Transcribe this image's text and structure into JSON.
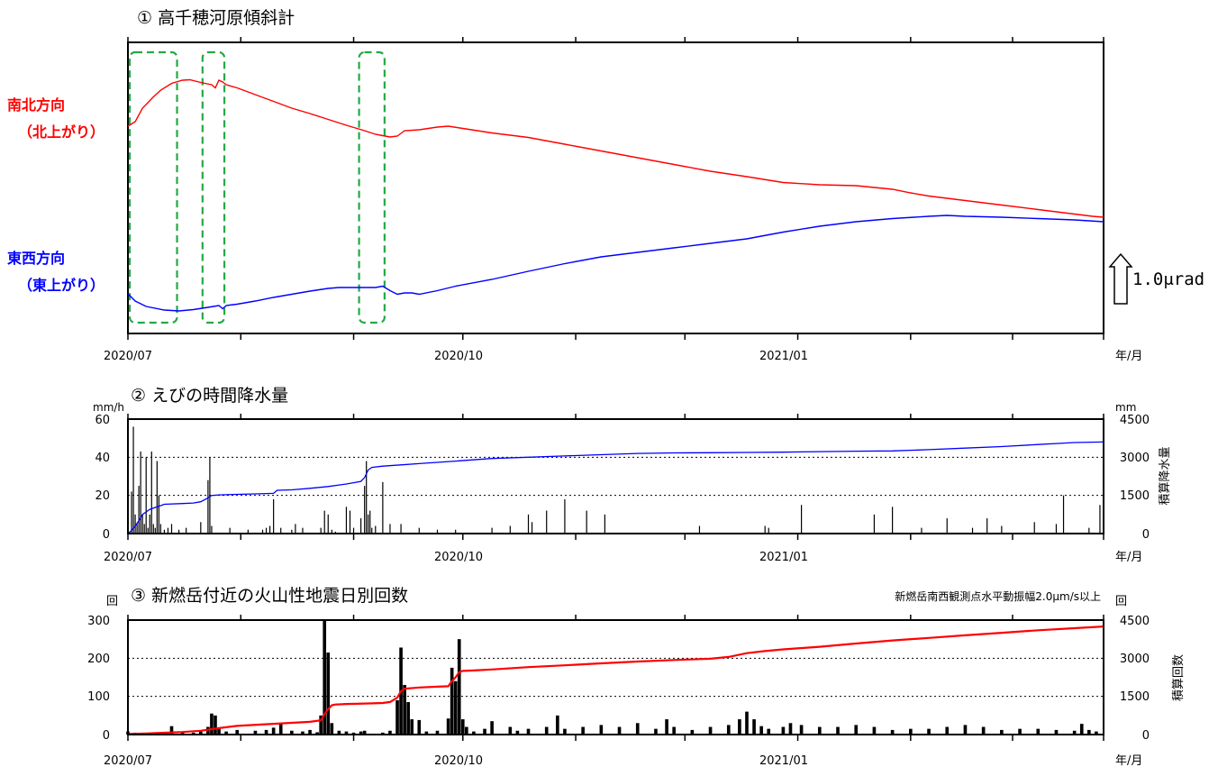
{
  "chart_data": [
    {
      "type": "line",
      "title": "① 高千穂河原傾斜計",
      "xlabel": "年/月",
      "xticklabels": [
        "2020/07",
        "2020/10",
        "2021/01"
      ],
      "scale_label": "1.0μrad",
      "series": [
        {
          "name": "南北方向 （北上がり）",
          "label_line1": "南北方向",
          "label_line2": "（北上がり）",
          "color": "#ff0000",
          "x_days": [
            0,
            2,
            4,
            7,
            9,
            12,
            15,
            17,
            20,
            23,
            24,
            25,
            26,
            27,
            30,
            35,
            40,
            45,
            50,
            55,
            60,
            65,
            68,
            70,
            72,
            74,
            76,
            80,
            85,
            88,
            92,
            96,
            100,
            110,
            120,
            130,
            140,
            150,
            160,
            170,
            180,
            190,
            200,
            210,
            215,
            220,
            230,
            240,
            250,
            260,
            265,
            268
          ],
          "values": [
            4.6,
            4.7,
            5.0,
            5.25,
            5.4,
            5.55,
            5.62,
            5.63,
            5.57,
            5.52,
            5.45,
            5.62,
            5.58,
            5.52,
            5.45,
            5.3,
            5.15,
            5.0,
            4.88,
            4.75,
            4.62,
            4.5,
            4.42,
            4.39,
            4.36,
            4.38,
            4.5,
            4.52,
            4.58,
            4.6,
            4.55,
            4.5,
            4.45,
            4.35,
            4.2,
            4.05,
            3.9,
            3.75,
            3.6,
            3.48,
            3.35,
            3.3,
            3.28,
            3.2,
            3.12,
            3.05,
            2.95,
            2.85,
            2.75,
            2.65,
            2.6,
            2.58
          ]
        },
        {
          "name": "東西方向 （東上がり）",
          "label_line1": "東西方向",
          "label_line2": "（東上がり）",
          "color": "#0000ff",
          "x_days": [
            0,
            2,
            5,
            10,
            14,
            18,
            22,
            25,
            26,
            27,
            30,
            35,
            40,
            45,
            50,
            55,
            58,
            62,
            68,
            70,
            72,
            74,
            76,
            78,
            80,
            85,
            90,
            100,
            110,
            120,
            130,
            140,
            150,
            160,
            170,
            180,
            190,
            200,
            210,
            220,
            225,
            230,
            240,
            250,
            260,
            268
          ],
          "values": [
            0.88,
            0.72,
            0.6,
            0.52,
            0.5,
            0.53,
            0.58,
            0.62,
            0.55,
            0.62,
            0.65,
            0.72,
            0.8,
            0.87,
            0.94,
            1.0,
            1.02,
            1.02,
            1.02,
            1.05,
            0.95,
            0.87,
            0.9,
            0.9,
            0.87,
            0.95,
            1.05,
            1.2,
            1.38,
            1.55,
            1.7,
            1.8,
            1.9,
            2.0,
            2.1,
            2.25,
            2.38,
            2.48,
            2.55,
            2.6,
            2.62,
            2.6,
            2.58,
            2.55,
            2.52,
            2.48
          ]
        }
      ],
      "highlight_boxes_days": [
        [
          0,
          13
        ],
        [
          20,
          26
        ],
        [
          63,
          70
        ]
      ]
    },
    {
      "type": "bar",
      "title": "② えびの時間降水量",
      "xlabel": "年/月",
      "xticklabels": [
        "2020/07",
        "2020/10",
        "2021/01"
      ],
      "ylabel_left": "mm/h",
      "ylabel_right": "mm",
      "ylabel_right_text": "積算降水量",
      "ylim": [
        0,
        60
      ],
      "yticks": [
        "60",
        "40",
        "20",
        "0"
      ],
      "ylim_right": [
        0,
        4500
      ],
      "yticks_right": [
        "4500",
        "3000",
        "1500",
        "0"
      ],
      "bar_color": "#000000",
      "hourly_bars": {
        "x_days": [
          1,
          1.5,
          2,
          2.5,
          3,
          3.5,
          4,
          4.5,
          5,
          5.5,
          6,
          6.5,
          7,
          7.5,
          8,
          8.5,
          9,
          10,
          11,
          12,
          14,
          16,
          20,
          22,
          22.5,
          23,
          28,
          33,
          37,
          38,
          39,
          40,
          42,
          45,
          46,
          48,
          53,
          54,
          55,
          56,
          57,
          60,
          61,
          62,
          64,
          65,
          65.5,
          66,
          66.5,
          67,
          68,
          70,
          72,
          75,
          80,
          85,
          90,
          100,
          105,
          110,
          111,
          115,
          120,
          126,
          131,
          157,
          175,
          176,
          185,
          205,
          210,
          218,
          225,
          232,
          236,
          240,
          249,
          255,
          257,
          264,
          267
        ],
        "values": [
          22,
          56,
          10,
          5,
          25,
          43,
          10,
          5,
          40,
          3,
          10,
          43,
          5,
          3,
          38,
          20,
          5,
          2,
          3,
          5,
          2,
          3,
          6,
          28,
          40,
          4,
          3,
          2,
          2,
          3,
          4,
          18,
          3,
          2,
          5,
          3,
          3,
          12,
          10,
          2,
          1,
          14,
          12,
          3,
          8,
          25,
          38,
          10,
          12,
          3,
          4,
          27,
          5,
          5,
          3,
          2,
          2,
          3,
          4,
          10,
          6,
          12,
          18,
          12,
          10,
          4,
          4,
          3,
          15,
          10,
          14,
          3,
          8,
          3,
          8,
          4,
          6,
          5,
          20,
          3,
          15
        ]
      },
      "cumulative_line": {
        "name": "積算降水量",
        "color": "#0000ff",
        "x_days": [
          0,
          1,
          2,
          3,
          4,
          5,
          6,
          7,
          8,
          9,
          10,
          15,
          18,
          20,
          22,
          23,
          25,
          30,
          35,
          40,
          41,
          45,
          50,
          55,
          60,
          62,
          64,
          65,
          66,
          67,
          70,
          75,
          80,
          90,
          100,
          110,
          120,
          130,
          140,
          150,
          160,
          170,
          180,
          190,
          200,
          210,
          220,
          230,
          240,
          250,
          255,
          260,
          268
        ],
        "values": [
          0,
          120,
          300,
          500,
          750,
          850,
          950,
          1000,
          1050,
          1100,
          1150,
          1180,
          1200,
          1250,
          1400,
          1500,
          1520,
          1540,
          1560,
          1580,
          1700,
          1720,
          1780,
          1850,
          1950,
          2000,
          2050,
          2200,
          2500,
          2600,
          2650,
          2700,
          2750,
          2850,
          2950,
          3000,
          3050,
          3100,
          3150,
          3170,
          3180,
          3190,
          3200,
          3220,
          3240,
          3250,
          3300,
          3360,
          3420,
          3500,
          3540,
          3580,
          3600
        ]
      }
    },
    {
      "type": "bar",
      "title": "③ 新燃岳付近の火山性地震日別回数",
      "note": "新燃岳南西観測点水平動振幅2.0μm/s以上",
      "xlabel": "年/月",
      "xticklabels": [
        "2020/07",
        "2020/10",
        "2021/01"
      ],
      "ylabel_left": "回",
      "ylabel_right": "回",
      "ylabel_right_text": "積算回数",
      "ylim": [
        0,
        300
      ],
      "yticks": [
        "300",
        "200",
        "100",
        "0"
      ],
      "ylim_right": [
        0,
        4500
      ],
      "yticks_right": [
        "4500",
        "3000",
        "1500",
        "0"
      ],
      "bar_color": "#000000",
      "daily_bars": {
        "x_days": [
          0,
          2,
          4,
          6,
          8,
          10,
          12,
          15,
          18,
          20,
          22,
          23,
          24,
          25,
          27,
          30,
          35,
          38,
          40,
          42,
          45,
          48,
          50,
          52,
          53,
          54,
          55,
          56,
          58,
          60,
          62,
          64,
          65,
          70,
          72,
          74,
          75,
          76,
          77,
          78,
          80,
          82,
          85,
          88,
          89,
          90,
          91,
          92,
          93,
          95,
          98,
          100,
          105,
          107,
          110,
          115,
          118,
          120,
          125,
          130,
          135,
          140,
          145,
          148,
          150,
          155,
          160,
          165,
          168,
          170,
          172,
          174,
          176,
          180,
          182,
          185,
          190,
          195,
          200,
          205,
          210,
          215,
          220,
          225,
          230,
          235,
          240,
          245,
          250,
          255,
          260,
          262,
          264,
          266
        ],
        "values": [
          8,
          5,
          4,
          3,
          6,
          5,
          22,
          6,
          5,
          8,
          20,
          55,
          50,
          18,
          8,
          12,
          10,
          12,
          18,
          30,
          10,
          8,
          12,
          6,
          50,
          300,
          215,
          30,
          10,
          8,
          5,
          8,
          10,
          5,
          10,
          90,
          228,
          130,
          85,
          40,
          38,
          8,
          10,
          42,
          175,
          140,
          250,
          40,
          20,
          8,
          15,
          35,
          20,
          10,
          15,
          20,
          50,
          15,
          20,
          25,
          20,
          30,
          15,
          40,
          20,
          12,
          20,
          25,
          40,
          60,
          40,
          22,
          15,
          20,
          30,
          25,
          20,
          20,
          25,
          20,
          12,
          15,
          15,
          20,
          25,
          20,
          12,
          15,
          15,
          12,
          10,
          28,
          12,
          8
        ]
      },
      "cumulative_line": {
        "name": "積算回数",
        "color": "#ff0000",
        "x_days": [
          0,
          5,
          10,
          15,
          20,
          25,
          30,
          40,
          50,
          53,
          54,
          55,
          56,
          57,
          60,
          65,
          70,
          72,
          74,
          75,
          76,
          80,
          85,
          88,
          89,
          90,
          91,
          92,
          95,
          100,
          110,
          120,
          130,
          140,
          150,
          160,
          165,
          170,
          175,
          180,
          190,
          200,
          210,
          220,
          230,
          240,
          250,
          260,
          268
        ],
        "values": [
          20,
          40,
          70,
          100,
          150,
          250,
          340,
          420,
          500,
          560,
          800,
          1000,
          1150,
          1180,
          1200,
          1220,
          1240,
          1280,
          1450,
          1700,
          1800,
          1850,
          1880,
          1900,
          2100,
          2250,
          2450,
          2500,
          2520,
          2560,
          2650,
          2720,
          2800,
          2870,
          2930,
          2980,
          3050,
          3200,
          3280,
          3350,
          3450,
          3580,
          3700,
          3800,
          3900,
          4000,
          4100,
          4180,
          4250
        ]
      }
    }
  ]
}
